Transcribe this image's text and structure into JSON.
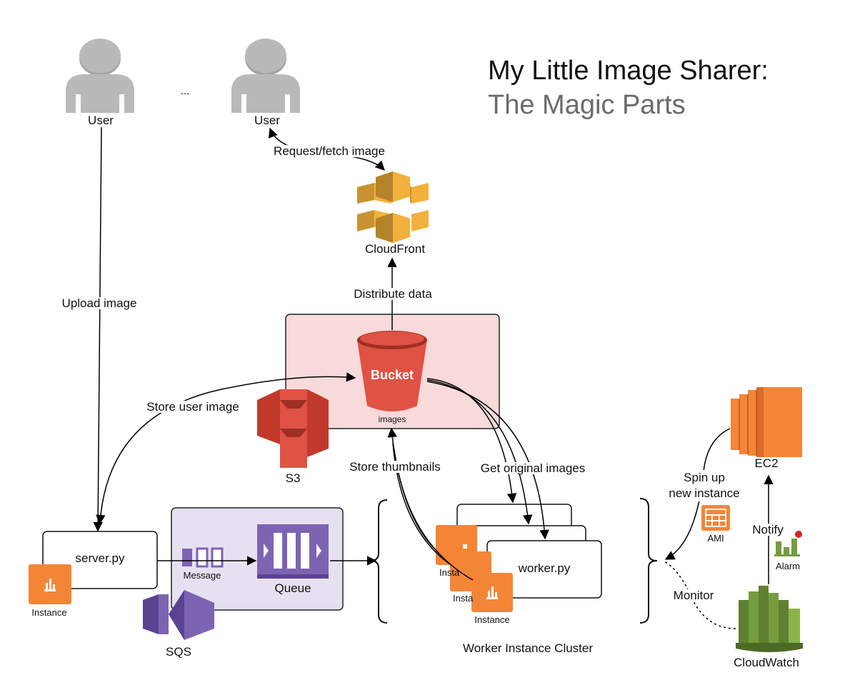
{
  "title": {
    "line1": "My Little Image Sharer:",
    "line2": "The Magic Parts"
  },
  "users": {
    "left": "User",
    "right": "User",
    "ellipsis": "..."
  },
  "cloudfront": {
    "label": "CloudFront",
    "request_edge": "Request/fetch image",
    "distribute_edge": "Distribute data"
  },
  "s3": {
    "label": "S3",
    "bucket_label": "Bucket",
    "bucket_caption": "images"
  },
  "edges": {
    "upload": "Upload image",
    "store_user_image": "Store user image",
    "store_thumbnails": "Store thumbnails",
    "get_originals": "Get original images",
    "spin_up": "Spin up\nnew instance",
    "notify": "Notify",
    "monitor": "Monitor"
  },
  "server": {
    "label": "server.py",
    "instance_label": "Instance"
  },
  "sqs": {
    "label": "SQS",
    "message_label": "Message",
    "queue_label": "Queue"
  },
  "workers": {
    "label": "worker.py",
    "instance_label": "Instance",
    "instance_label_clipped_1": "Insta",
    "instance_label_clipped_2": "Insta",
    "cluster_label": "Worker Instance Cluster"
  },
  "ec2": {
    "label": "EC2",
    "ami_label": "AMI"
  },
  "cloudwatch": {
    "label": "CloudWatch",
    "alarm_label": "Alarm"
  },
  "colors": {
    "aws_orange": "#f58536",
    "s3_red": "#e05243",
    "cloudfront_gold": "#f2b13c",
    "sqs_purple": "#7d64b3",
    "cloudwatch_green": "#759c3e",
    "user_gray": "#b9b9b9",
    "s3_box_fill": "#f8dada",
    "sqs_box_fill": "#e6e1f0"
  }
}
